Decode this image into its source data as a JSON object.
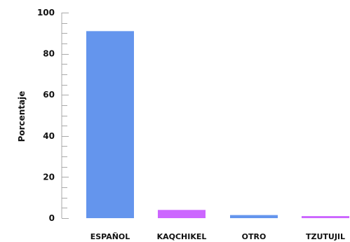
{
  "chart_data": {
    "type": "bar",
    "title": "",
    "xlabel": "",
    "ylabel": "Porcentaje",
    "ylim": [
      0,
      100
    ],
    "yticks": [
      0,
      20,
      40,
      60,
      80,
      100
    ],
    "y_minor_step": 5,
    "grid": false,
    "legend": "none",
    "categories": [
      "ESPAÑOL",
      "KAQCHIKEL",
      "OTRO",
      "TZUTUJIL"
    ],
    "values": [
      91,
      4,
      1.5,
      1
    ],
    "bar_colors": [
      "#6495ED",
      "#CC66FF",
      "#6495ED",
      "#CC66FF"
    ],
    "axis_color": "#aaaaaa"
  }
}
